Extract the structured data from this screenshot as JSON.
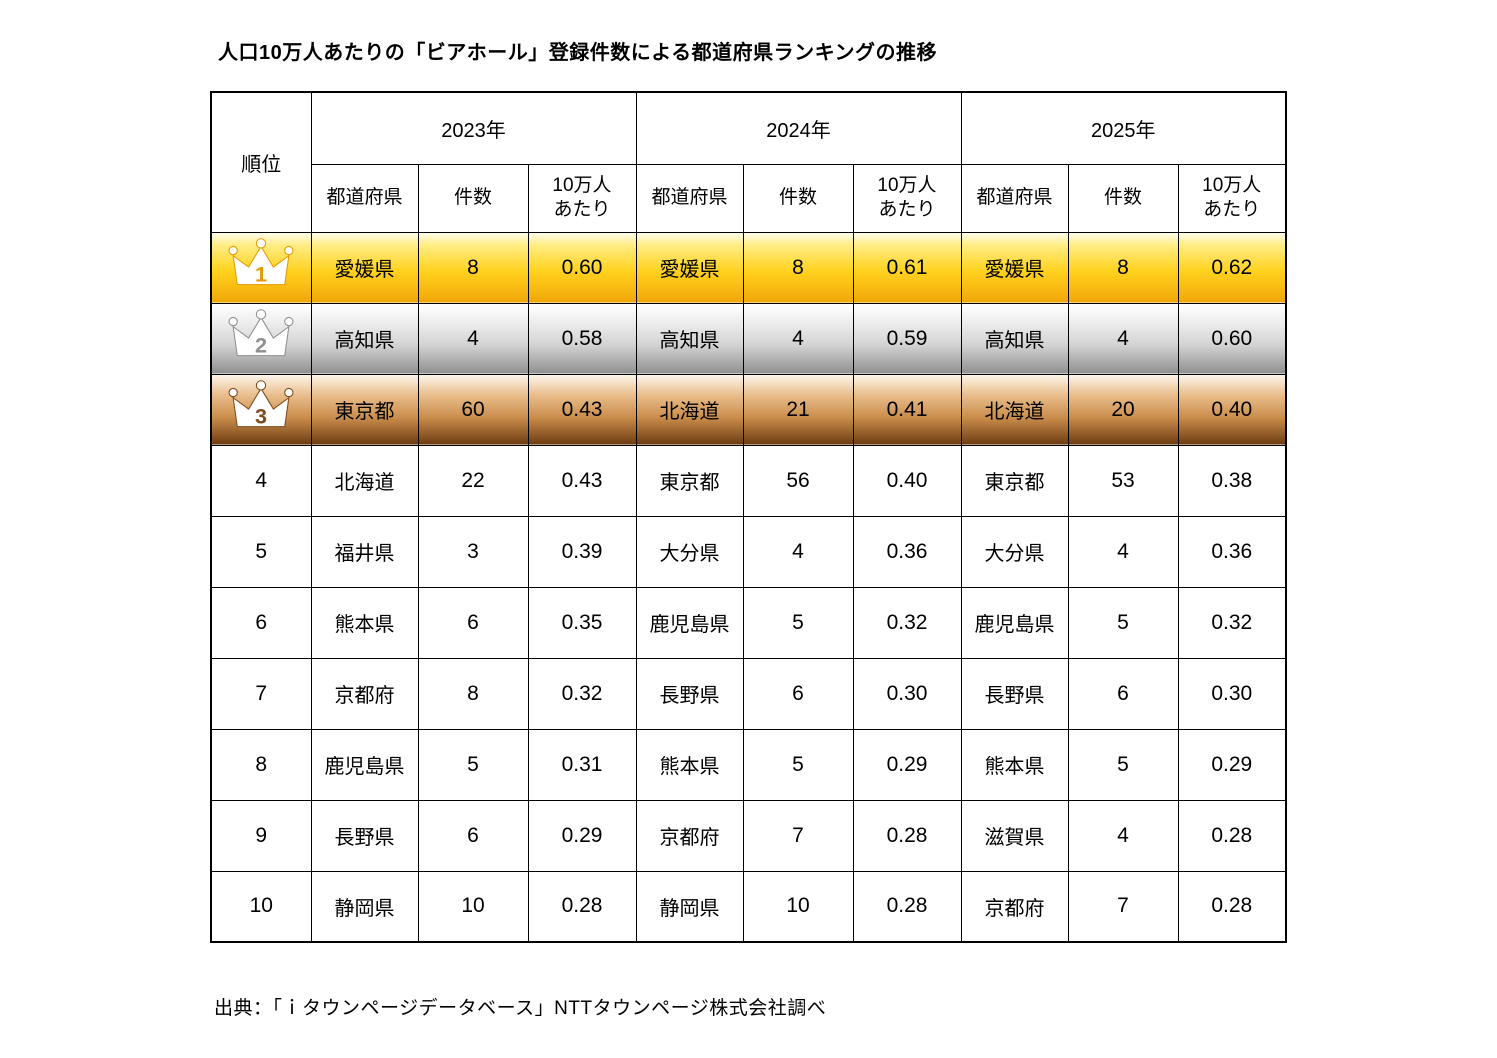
{
  "title": "人口10万人あたりの「ビアホール」登録件数による都道府県ランキングの推移",
  "source": "出典：「ｉタウンページデータベース」NTTタウンページ株式会社調べ",
  "colors": {
    "gold_accent": "#e39b00",
    "silver_accent": "#8f8f8f",
    "bronze_accent": "#7d4a1d",
    "border": "#000000"
  },
  "chart_data": {
    "type": "table",
    "rank_header": "順位",
    "year_groups": [
      "2023年",
      "2024年",
      "2025年"
    ],
    "sub_headers": [
      "都道府県",
      "件数",
      "10万人\nあたり"
    ],
    "rows": [
      {
        "rank": "1",
        "medal": "gold",
        "years": [
          {
            "pref": "愛媛県",
            "count": "8",
            "per100k": "0.60"
          },
          {
            "pref": "愛媛県",
            "count": "8",
            "per100k": "0.61"
          },
          {
            "pref": "愛媛県",
            "count": "8",
            "per100k": "0.62"
          }
        ]
      },
      {
        "rank": "2",
        "medal": "silver",
        "years": [
          {
            "pref": "高知県",
            "count": "4",
            "per100k": "0.58"
          },
          {
            "pref": "高知県",
            "count": "4",
            "per100k": "0.59"
          },
          {
            "pref": "高知県",
            "count": "4",
            "per100k": "0.60"
          }
        ]
      },
      {
        "rank": "3",
        "medal": "bronze",
        "years": [
          {
            "pref": "東京都",
            "count": "60",
            "per100k": "0.43"
          },
          {
            "pref": "北海道",
            "count": "21",
            "per100k": "0.41"
          },
          {
            "pref": "北海道",
            "count": "20",
            "per100k": "0.40"
          }
        ]
      },
      {
        "rank": "4",
        "medal": null,
        "years": [
          {
            "pref": "北海道",
            "count": "22",
            "per100k": "0.43"
          },
          {
            "pref": "東京都",
            "count": "56",
            "per100k": "0.40"
          },
          {
            "pref": "東京都",
            "count": "53",
            "per100k": "0.38"
          }
        ]
      },
      {
        "rank": "5",
        "medal": null,
        "years": [
          {
            "pref": "福井県",
            "count": "3",
            "per100k": "0.39"
          },
          {
            "pref": "大分県",
            "count": "4",
            "per100k": "0.36"
          },
          {
            "pref": "大分県",
            "count": "4",
            "per100k": "0.36"
          }
        ]
      },
      {
        "rank": "6",
        "medal": null,
        "years": [
          {
            "pref": "熊本県",
            "count": "6",
            "per100k": "0.35"
          },
          {
            "pref": "鹿児島県",
            "count": "5",
            "per100k": "0.32"
          },
          {
            "pref": "鹿児島県",
            "count": "5",
            "per100k": "0.32"
          }
        ]
      },
      {
        "rank": "7",
        "medal": null,
        "years": [
          {
            "pref": "京都府",
            "count": "8",
            "per100k": "0.32"
          },
          {
            "pref": "長野県",
            "count": "6",
            "per100k": "0.30"
          },
          {
            "pref": "長野県",
            "count": "6",
            "per100k": "0.30"
          }
        ]
      },
      {
        "rank": "8",
        "medal": null,
        "years": [
          {
            "pref": "鹿児島県",
            "count": "5",
            "per100k": "0.31"
          },
          {
            "pref": "熊本県",
            "count": "5",
            "per100k": "0.29"
          },
          {
            "pref": "熊本県",
            "count": "5",
            "per100k": "0.29"
          }
        ]
      },
      {
        "rank": "9",
        "medal": null,
        "years": [
          {
            "pref": "長野県",
            "count": "6",
            "per100k": "0.29"
          },
          {
            "pref": "京都府",
            "count": "7",
            "per100k": "0.28"
          },
          {
            "pref": "滋賀県",
            "count": "4",
            "per100k": "0.28"
          }
        ]
      },
      {
        "rank": "10",
        "medal": null,
        "years": [
          {
            "pref": "静岡県",
            "count": "10",
            "per100k": "0.28"
          },
          {
            "pref": "静岡県",
            "count": "10",
            "per100k": "0.28"
          },
          {
            "pref": "京都府",
            "count": "7",
            "per100k": "0.28"
          }
        ]
      }
    ]
  }
}
